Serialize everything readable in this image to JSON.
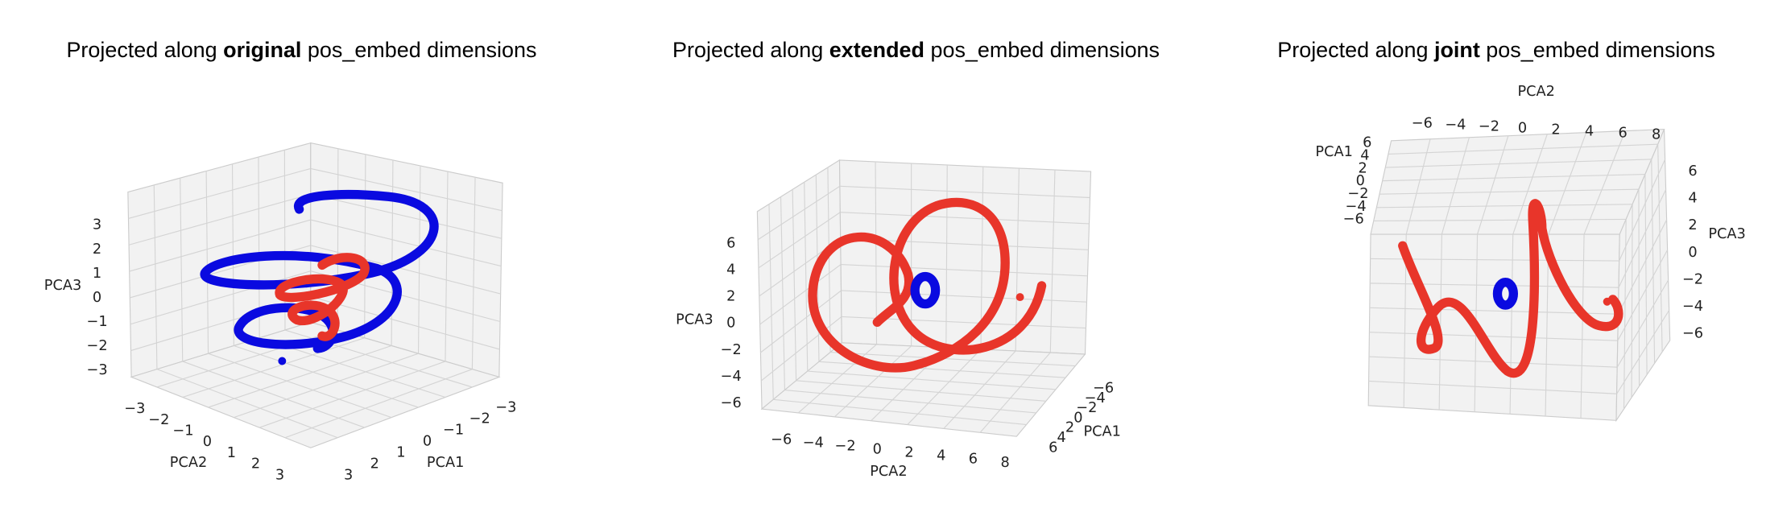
{
  "panels": [
    {
      "title": {
        "prefix": "Projected along",
        "emphasis": "original",
        "suffix": "pos_embed dimensions"
      },
      "axes": {
        "x_label": "PCA2",
        "y_label": "PCA1",
        "z_label": "PCA3",
        "x_ticks": [
          "−3",
          "−2",
          "−1",
          "0",
          "1",
          "2",
          "3"
        ],
        "y_ticks": [
          "−3",
          "−2",
          "−1",
          "0",
          "1",
          "2",
          "3"
        ],
        "z_ticks": [
          "3",
          "2",
          "1",
          "0",
          "−1",
          "−2",
          "−3"
        ]
      }
    },
    {
      "title": {
        "prefix": "Projected along",
        "emphasis": "extended",
        "suffix": "pos_embed dimensions"
      },
      "axes": {
        "x_label": "PCA2",
        "y_label": "PCA1",
        "z_label": "PCA3",
        "x_ticks": [
          "−6",
          "−4",
          "−2",
          "0",
          "2",
          "4",
          "6",
          "8"
        ],
        "y_ticks": [
          "−6",
          "−4",
          "−2",
          "0",
          "2",
          "4",
          "6"
        ],
        "z_ticks": [
          "6",
          "4",
          "2",
          "0",
          "−2",
          "−4",
          "−6"
        ]
      }
    },
    {
      "title": {
        "prefix": "Projected along",
        "emphasis": "joint",
        "suffix": "pos_embed dimensions"
      },
      "axes": {
        "x_label": "PCA2",
        "y_label": "PCA1",
        "z_label": "PCA3",
        "x_ticks": [
          "−6",
          "−4",
          "−2",
          "0",
          "2",
          "4",
          "6",
          "8"
        ],
        "y_ticks": [
          "6",
          "4",
          "2",
          "0",
          "−2",
          "−4",
          "−6"
        ],
        "z_ticks": [
          "6",
          "4",
          "2",
          "0",
          "−2",
          "−4",
          "−6"
        ]
      }
    }
  ]
}
